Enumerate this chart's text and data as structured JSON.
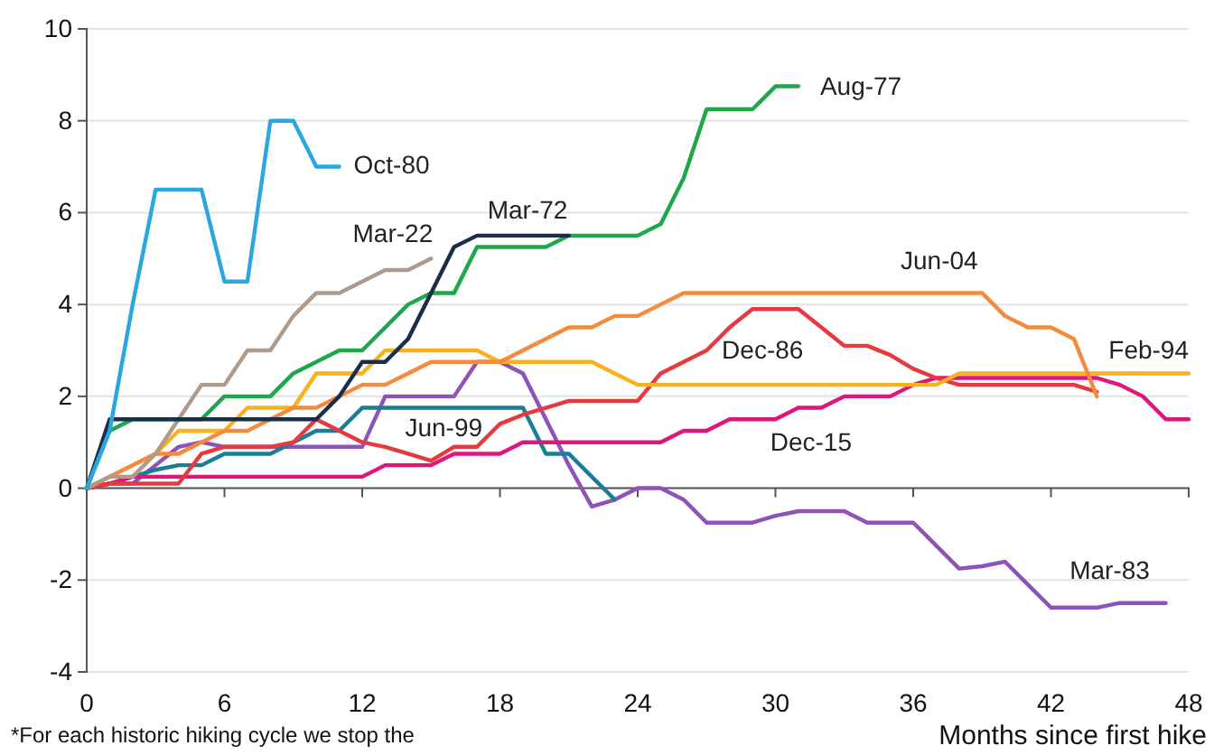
{
  "chart_data": {
    "type": "line",
    "xlabel": "Months since first hike",
    "x": [
      0,
      1,
      2,
      3,
      4,
      5,
      6,
      7,
      8,
      9,
      10,
      11,
      12,
      13,
      14,
      15,
      16,
      17,
      18,
      19,
      20,
      21,
      22,
      23,
      24,
      25,
      26,
      27,
      28,
      29,
      30,
      31,
      32,
      33,
      34,
      35,
      36,
      37,
      38,
      39,
      40,
      41,
      42,
      43,
      44,
      45,
      46,
      47,
      48
    ],
    "xlim": [
      0,
      48
    ],
    "xticks": [
      0,
      6,
      12,
      18,
      24,
      30,
      36,
      42,
      48
    ],
    "ylim": [
      -4,
      10
    ],
    "yticks": [
      -4,
      -2,
      0,
      2,
      4,
      6,
      8,
      10
    ],
    "grid": "y",
    "legend": false,
    "marker": "none",
    "line_style": "solid",
    "annotations": [
      "*For each historic hiking cycle we stop the"
    ],
    "series": [
      {
        "name": "Mar-83",
        "color": "#8e52b8",
        "values": [
          0,
          0.1,
          0.1,
          0.5,
          0.9,
          1,
          0.9,
          0.9,
          0.9,
          0.9,
          0.9,
          0.9,
          0.9,
          2,
          2,
          2,
          2,
          2.75,
          2.75,
          2.5,
          1.5,
          0.5,
          -0.4,
          -0.25,
          0,
          0,
          -0.25,
          -0.75,
          -0.75,
          -0.75,
          -0.6,
          -0.5,
          -0.5,
          -0.5,
          -0.75,
          -0.75,
          -0.75,
          -1.25,
          -1.75,
          -1.7,
          -1.6,
          -2.1,
          -2.6,
          -2.6,
          -2.6,
          -2.5,
          -2.5,
          -2.5,
          null
        ]
      },
      {
        "name": "Jun-99",
        "color": "#1a7f96",
        "values": [
          0,
          0.1,
          0.25,
          0.4,
          0.5,
          0.5,
          0.75,
          0.75,
          0.75,
          1,
          1.25,
          1.25,
          1.75,
          1.75,
          1.75,
          1.75,
          1.75,
          1.75,
          1.75,
          1.75,
          0.75,
          0.75,
          0.25,
          -0.25,
          null,
          null,
          null,
          null,
          null,
          null,
          null,
          null,
          null,
          null,
          null,
          null,
          null,
          null,
          null,
          null,
          null,
          null,
          null,
          null,
          null,
          null,
          null,
          null,
          null
        ]
      },
      {
        "name": "Dec-15",
        "color": "#e0177a",
        "values": [
          0,
          0.1,
          0.25,
          0.25,
          0.25,
          0.25,
          0.25,
          0.25,
          0.25,
          0.25,
          0.25,
          0.25,
          0.25,
          0.5,
          0.5,
          0.5,
          0.75,
          0.75,
          0.75,
          1,
          1,
          1,
          1,
          1,
          1,
          1,
          1.25,
          1.25,
          1.5,
          1.5,
          1.5,
          1.75,
          1.75,
          2,
          2,
          2,
          2.25,
          2.4,
          2.4,
          2.4,
          2.4,
          2.4,
          2.4,
          2.4,
          2.4,
          2.25,
          2,
          1.5,
          1.5
        ]
      },
      {
        "name": "Dec-86",
        "color": "#e8393f",
        "values": [
          0,
          0.1,
          0.1,
          0.1,
          0.1,
          0.75,
          0.9,
          0.9,
          0.9,
          1,
          1.5,
          1.25,
          1,
          0.9,
          0.75,
          0.6,
          0.9,
          0.9,
          1.4,
          1.6,
          1.75,
          1.9,
          1.9,
          1.9,
          1.9,
          2.5,
          2.75,
          3,
          3.5,
          3.9,
          3.9,
          3.9,
          3.5,
          3.1,
          3.1,
          2.9,
          2.6,
          2.4,
          2.25,
          2.25,
          2.25,
          2.25,
          2.25,
          2.25,
          2.1,
          null,
          null,
          null,
          null
        ]
      },
      {
        "name": "Feb-94",
        "color": "#f9b21b",
        "values": [
          0,
          0.25,
          0.5,
          0.75,
          1.25,
          1.25,
          1.25,
          1.75,
          1.75,
          1.75,
          2.5,
          2.5,
          2.5,
          3,
          3,
          3,
          3,
          3,
          2.75,
          2.75,
          2.75,
          2.75,
          2.75,
          2.5,
          2.25,
          2.25,
          2.25,
          2.25,
          2.25,
          2.25,
          2.25,
          2.25,
          2.25,
          2.25,
          2.25,
          2.25,
          2.25,
          2.25,
          2.5,
          2.5,
          2.5,
          2.5,
          2.5,
          2.5,
          2.5,
          2.5,
          2.5,
          2.5,
          2.5
        ]
      },
      {
        "name": "Jun-04",
        "color": "#f58a3c",
        "values": [
          0,
          0.25,
          0.5,
          0.75,
          0.75,
          1,
          1.25,
          1.25,
          1.5,
          1.75,
          1.75,
          2,
          2.25,
          2.25,
          2.5,
          2.75,
          2.75,
          2.75,
          2.75,
          3,
          3.25,
          3.5,
          3.5,
          3.75,
          3.75,
          4,
          4.25,
          4.25,
          4.25,
          4.25,
          4.25,
          4.25,
          4.25,
          4.25,
          4.25,
          4.25,
          4.25,
          4.25,
          4.25,
          4.25,
          3.75,
          3.5,
          3.5,
          3.25,
          2,
          null,
          null,
          null,
          null
        ]
      },
      {
        "name": "Mar-22",
        "color": "#b09a8a",
        "values": [
          0,
          0.25,
          0.25,
          0.75,
          1.5,
          2.25,
          2.25,
          3,
          3,
          3.75,
          4.25,
          4.25,
          4.5,
          4.75,
          4.75,
          5,
          null,
          null,
          null,
          null,
          null,
          null,
          null,
          null,
          null,
          null,
          null,
          null,
          null,
          null,
          null,
          null,
          null,
          null,
          null,
          null,
          null,
          null,
          null,
          null,
          null,
          null,
          null,
          null,
          null,
          null,
          null,
          null,
          null
        ]
      },
      {
        "name": "Aug-77",
        "color": "#1fa84a",
        "values": [
          0,
          1.25,
          1.5,
          1.5,
          1.5,
          1.5,
          2,
          2,
          2,
          2.5,
          2.75,
          3,
          3,
          3.5,
          4,
          4.25,
          4.25,
          5.25,
          5.25,
          5.25,
          5.25,
          5.5,
          5.5,
          5.5,
          5.5,
          5.75,
          6.75,
          8.25,
          8.25,
          8.25,
          8.75,
          8.75,
          null,
          null,
          null,
          null,
          null,
          null,
          null,
          null,
          null,
          null,
          null,
          null,
          null,
          null,
          null,
          null,
          null
        ]
      },
      {
        "name": "Mar-72",
        "color": "#1a2e4a",
        "values": [
          0,
          1.5,
          1.5,
          1.5,
          1.5,
          1.5,
          1.5,
          1.5,
          1.5,
          1.5,
          1.5,
          2,
          2.75,
          2.75,
          3.25,
          4.25,
          5.25,
          5.5,
          5.5,
          5.5,
          5.5,
          5.5,
          null,
          null,
          null,
          null,
          null,
          null,
          null,
          null,
          null,
          null,
          null,
          null,
          null,
          null,
          null,
          null,
          null,
          null,
          null,
          null,
          null,
          null,
          null,
          null,
          null,
          null,
          null
        ]
      },
      {
        "name": "Oct-80",
        "color": "#29a8e0",
        "values": [
          0,
          1.25,
          4,
          6.5,
          6.5,
          6.5,
          4.5,
          4.5,
          8,
          8,
          7,
          7,
          null,
          null,
          null,
          null,
          null,
          null,
          null,
          null,
          null,
          null,
          null,
          null,
          null,
          null,
          null,
          null,
          null,
          null,
          null,
          null,
          null,
          null,
          null,
          null,
          null,
          null,
          null,
          null,
          null,
          null,
          null,
          null,
          null,
          null,
          null,
          null,
          null
        ]
      }
    ]
  }
}
